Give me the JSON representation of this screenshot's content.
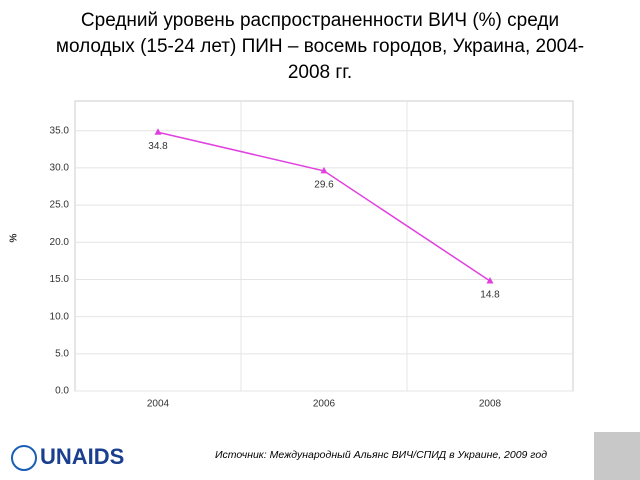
{
  "chart_data": {
    "type": "line",
    "title": "Средний уровень распространенности ВИЧ (%) среди молодых (15-24 лет) ПИН – восемь городов, Украина, 2004-2008 гг.",
    "y_label": "%",
    "categories": [
      "2004",
      "2006",
      "2008"
    ],
    "series": [
      {
        "name": "ВИЧ",
        "color": "#e040e0",
        "values": [
          34.8,
          29.6,
          14.8
        ]
      }
    ],
    "ylim": [
      0,
      39
    ],
    "yticks": [
      {
        "value": 0,
        "label": "0.0"
      },
      {
        "value": 5,
        "label": "5.0"
      },
      {
        "value": 10,
        "label": "10.0"
      },
      {
        "value": 15,
        "label": "15.0"
      },
      {
        "value": 20,
        "label": "20.0"
      },
      {
        "value": 25,
        "label": "25.0"
      },
      {
        "value": 30,
        "label": "30.0"
      },
      {
        "value": 35,
        "label": "35.0"
      }
    ],
    "grid": true
  },
  "footer": {
    "source": "Источник: Международный Альянс ВИЧ/СПИД в Украине, 2009 год",
    "logo": "UNAIDS"
  }
}
